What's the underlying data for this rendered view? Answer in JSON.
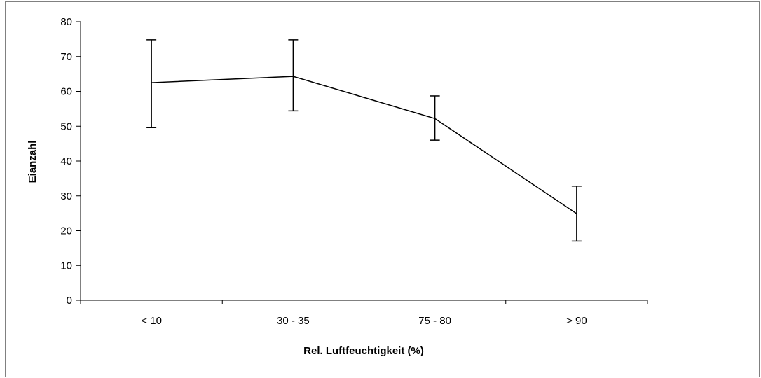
{
  "chart_data": {
    "type": "line",
    "title": "",
    "xlabel": "Rel. Luftfeuchtigkeit (%)",
    "ylabel": "Eianzahl",
    "categories": [
      "< 10",
      "30 - 35",
      "75 - 80",
      "> 90"
    ],
    "ylim": [
      0,
      80
    ],
    "yticks": [
      0,
      10,
      20,
      30,
      40,
      50,
      60,
      70,
      80
    ],
    "series": [
      {
        "values": [
          62.5,
          64.3,
          52.2,
          24.9
        ],
        "error_lower": [
          49.6,
          54.4,
          46.0,
          17.0
        ],
        "error_upper": [
          74.8,
          74.8,
          58.7,
          32.8
        ]
      }
    ],
    "grid": false,
    "legend": "none",
    "line_color": "#000000"
  }
}
